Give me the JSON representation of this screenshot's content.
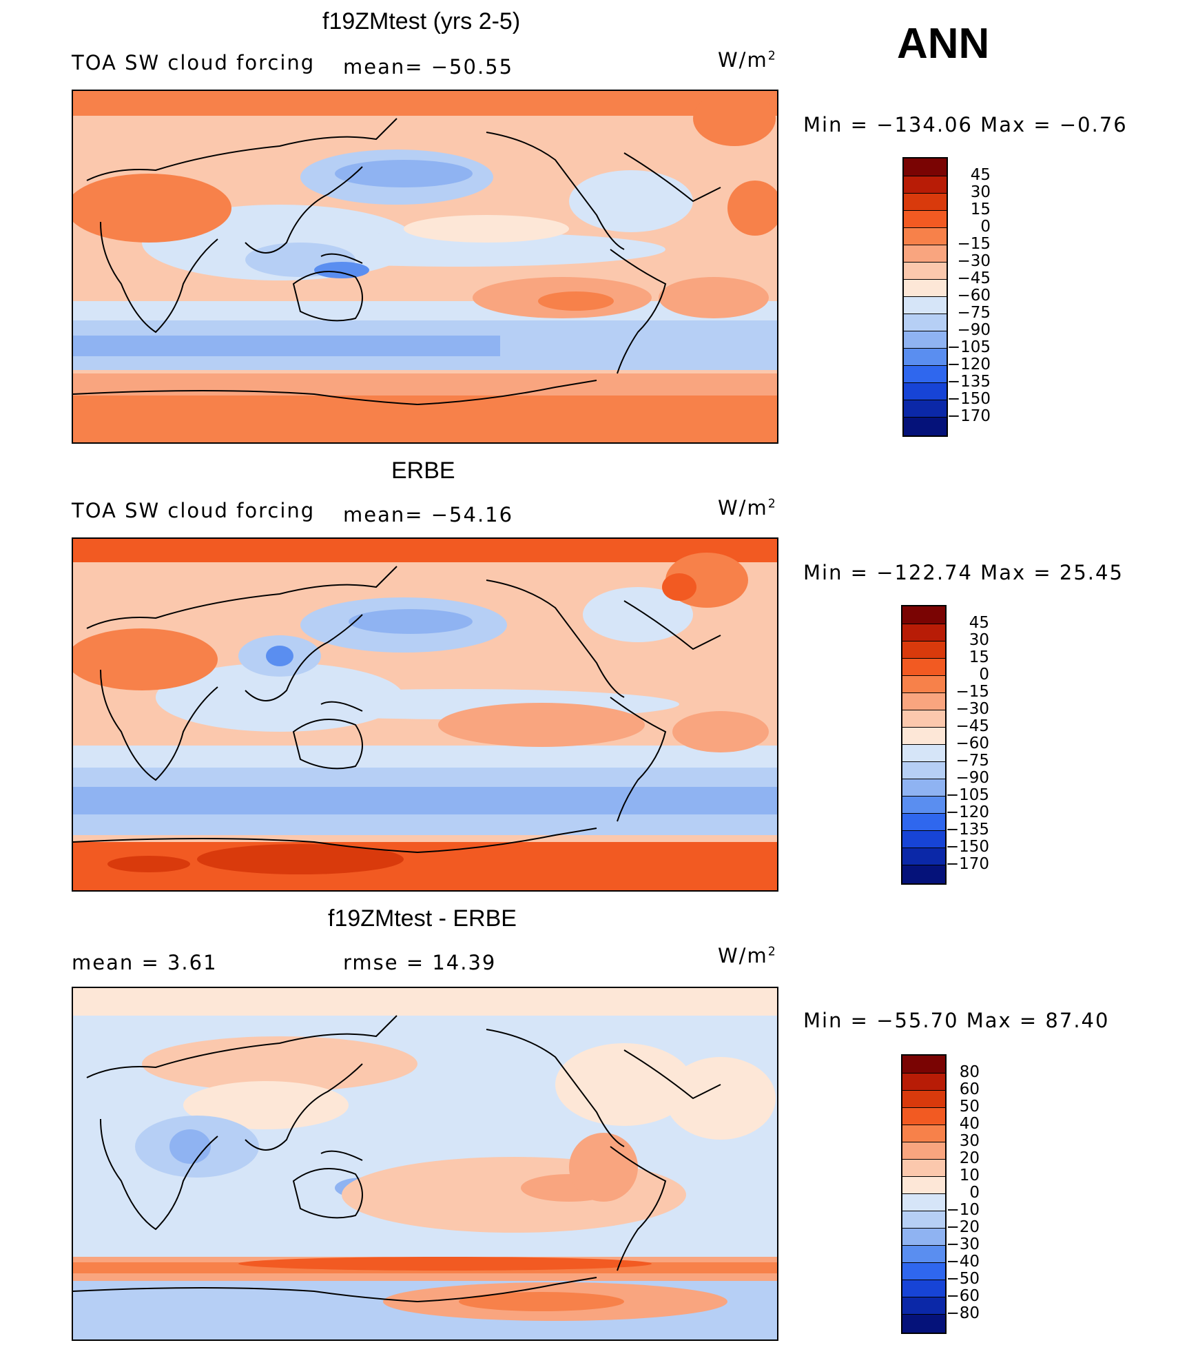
{
  "season": "ANN",
  "units_base": "W/m",
  "units_exp": "2",
  "panels": [
    {
      "title": "f19ZMtest (yrs 2-5)",
      "left_label": "TOA SW cloud forcing",
      "center_label": "mean=  −50.55",
      "minmax": "Min  =  −134.06  Max  =   −0.76",
      "colorbar_labels": [
        "45",
        "30",
        "15",
        "0",
        "−15",
        "−30",
        "−45",
        "−60",
        "−75",
        "−90",
        "−105",
        "−120",
        "−135",
        "−150",
        "−170"
      ]
    },
    {
      "title": "ERBE",
      "left_label": "TOA SW cloud forcing",
      "center_label": "mean=  −54.16",
      "minmax": "Min  =  −122.74  Max  =   25.45",
      "colorbar_labels": [
        "45",
        "30",
        "15",
        "0",
        "−15",
        "−30",
        "−45",
        "−60",
        "−75",
        "−90",
        "−105",
        "−120",
        "−135",
        "−150",
        "−170"
      ]
    },
    {
      "title": "f19ZMtest - ERBE",
      "left_label": "mean  =     3.61",
      "center_label": "rmse  =    14.39",
      "minmax": "Min  =  −55.70  Max  =   87.40",
      "colorbar_labels": [
        "80",
        "60",
        "50",
        "40",
        "30",
        "20",
        "10",
        "0",
        "−10",
        "−20",
        "−30",
        "−40",
        "−50",
        "−60",
        "−80"
      ]
    }
  ],
  "colors": {
    "scale": [
      "#7a0403",
      "#b81c06",
      "#d93a0c",
      "#f25a22",
      "#f7814a",
      "#f9a57f",
      "#fbc8ad",
      "#fde7d7",
      "#d6e5f8",
      "#b6cff5",
      "#8fb3f2",
      "#5a8ef0",
      "#2f67ee",
      "#1744d6",
      "#0b28a8",
      "#05127a"
    ],
    "coast": "#000000"
  }
}
